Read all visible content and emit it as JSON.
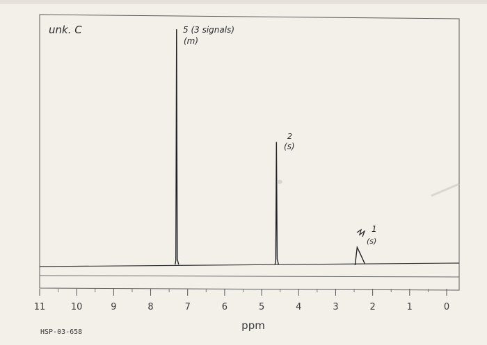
{
  "chart_data": {
    "type": "line",
    "title": "unk. C",
    "xlabel": "ppm",
    "ylabel": "",
    "x_reversed": true,
    "xlim": [
      11,
      0
    ],
    "ylim": [
      0,
      1
    ],
    "x_ticks": [
      "11",
      "10",
      "9",
      "8",
      "7",
      "6",
      "5",
      "4",
      "3",
      "2",
      "1",
      "0"
    ],
    "peaks": [
      {
        "ppm": 7.3,
        "height": 0.96,
        "annotation": [
          "5 (3 signals)",
          "(m)"
        ]
      },
      {
        "ppm": 4.6,
        "height": 0.5,
        "annotation": [
          "2",
          "(s)"
        ]
      },
      {
        "ppm": 2.4,
        "height": 0.07,
        "annotation": [
          "1",
          "(s)"
        ]
      }
    ],
    "footer_code": "HSP-03-658",
    "grid": false
  }
}
